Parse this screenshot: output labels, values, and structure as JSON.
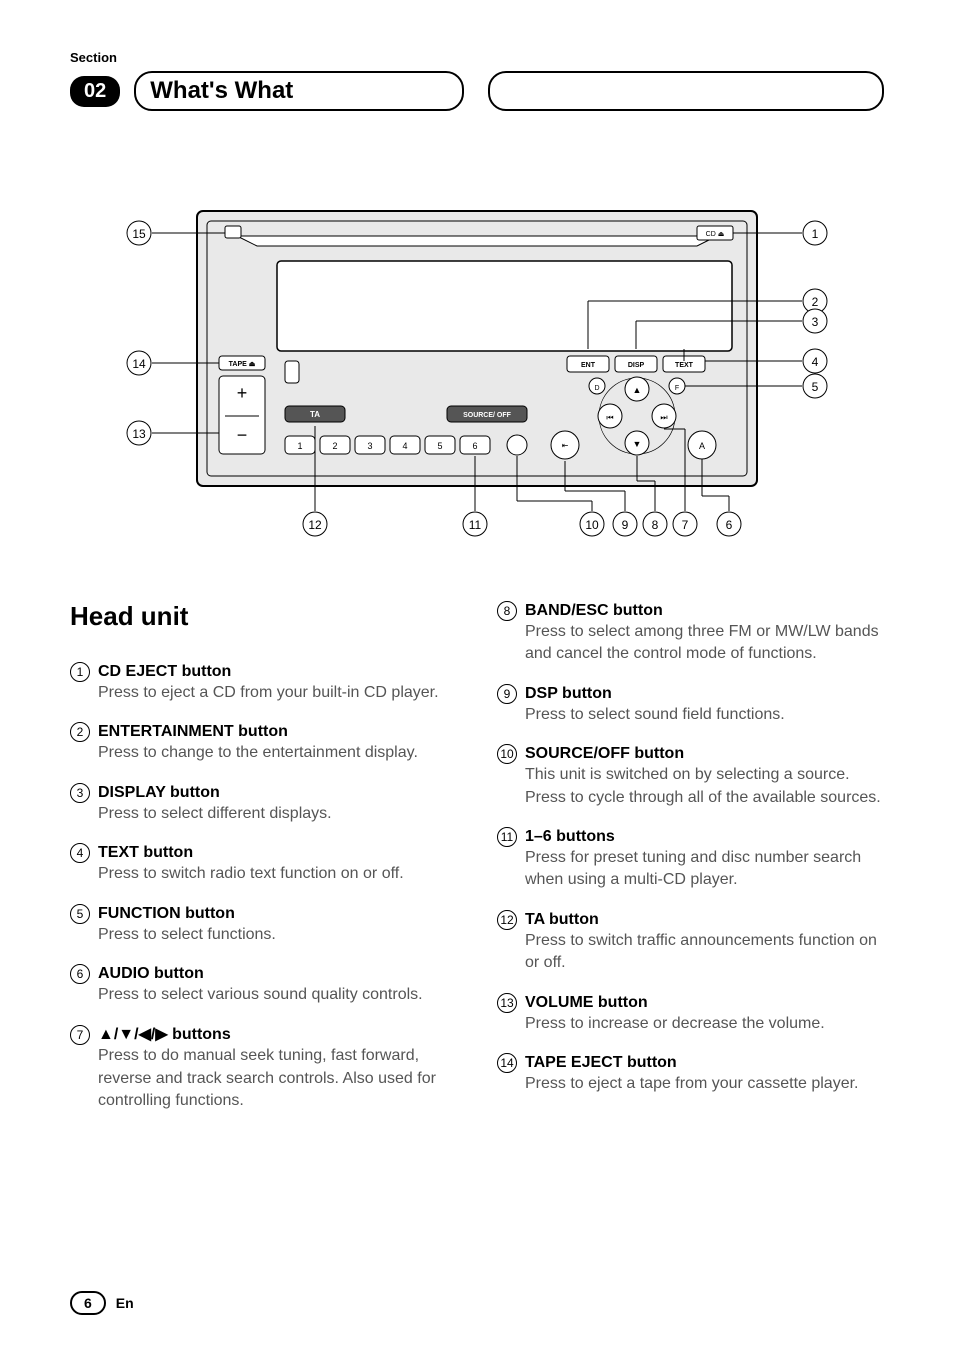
{
  "section_label": "Section",
  "section_number": "02",
  "section_title": "What's What",
  "heading": "Head unit",
  "page_number": "6",
  "lang": "En",
  "diagram": {
    "callouts_right": [
      "①",
      "②",
      "③",
      "④",
      "⑤"
    ],
    "callouts_bottom": [
      "⑫",
      "⑪",
      "⑩",
      "⑨",
      "⑧",
      "⑦",
      "⑥"
    ],
    "callouts_left": [
      "⑮",
      "⑭",
      "⑬"
    ],
    "button_labels": {
      "ent": "ENT",
      "disp": "DISP",
      "text": "TEXT",
      "ta": "TA",
      "source": "SOURCE/ OFF",
      "cd_eject": "CD ⏏",
      "tape_eject": "TAPE ⏏",
      "d": "D",
      "f": "F",
      "a": "A",
      "plus": "+",
      "minus": "−",
      "presets": [
        "1",
        "2",
        "3",
        "4",
        "5",
        "6"
      ]
    },
    "colors": {
      "outline": "#000000",
      "panel_fill": "#e9e9e9",
      "inner_fill": "#ffffff",
      "dark_button": "#555555",
      "text": "#000000"
    }
  },
  "left_items": [
    {
      "num": "①",
      "title": "CD EJECT button",
      "desc": "Press to eject a CD from your built-in CD player."
    },
    {
      "num": "②",
      "title": "ENTERTAINMENT button",
      "desc": "Press to change to the entertainment display."
    },
    {
      "num": "③",
      "title": "DISPLAY button",
      "desc": "Press to select different displays."
    },
    {
      "num": "④",
      "title": "TEXT button",
      "desc": "Press to switch radio text function on or off."
    },
    {
      "num": "⑤",
      "title": "FUNCTION button",
      "desc": "Press to select functions."
    },
    {
      "num": "⑥",
      "title": "AUDIO button",
      "desc": "Press to select various sound quality controls."
    },
    {
      "num": "⑦",
      "title": "▲/▼/◀/▶ buttons",
      "desc": "Press to do manual seek tuning, fast forward, reverse and track search controls. Also used for controlling functions."
    }
  ],
  "right_items": [
    {
      "num": "⑧",
      "title": "BAND/ESC button",
      "desc": "Press to select among three FM or MW/LW bands and cancel the control mode of functions."
    },
    {
      "num": "⑨",
      "title": "DSP button",
      "desc": "Press to select sound field functions."
    },
    {
      "num": "⑩",
      "title": "SOURCE/OFF button",
      "desc": "This unit is switched on by selecting a source. Press to cycle through all of the available sources."
    },
    {
      "num": "⑪",
      "title": "1–6 buttons",
      "desc": "Press for preset tuning and disc number search when using a multi-CD player."
    },
    {
      "num": "⑫",
      "title": "TA button",
      "desc": "Press to switch traffic announcements function on or off."
    },
    {
      "num": "⑬",
      "title": "VOLUME button",
      "desc": "Press to increase or decrease the volume."
    },
    {
      "num": "⑭",
      "title": "TAPE EJECT button",
      "desc": "Press to eject a tape from your cassette player."
    }
  ]
}
